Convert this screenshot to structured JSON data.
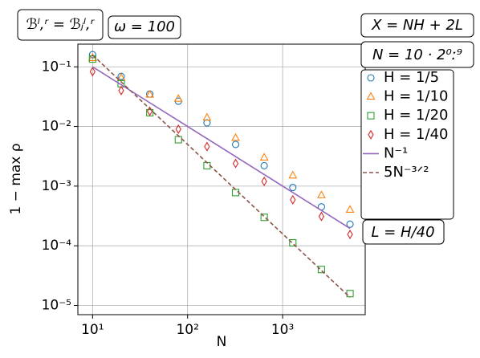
{
  "chart_data": {
    "type": "scatter",
    "xlabel": "N",
    "ylabel": "1 − max ρ",
    "xscale": "log",
    "yscale": "log",
    "grid": true,
    "legend": "right",
    "xlim": [
      7,
      7400
    ],
    "ylim": [
      7e-06,
      0.24
    ],
    "xticks": [
      {
        "value": 10,
        "label": "10¹"
      },
      {
        "value": 100,
        "label": "10²"
      },
      {
        "value": 1000,
        "label": "10³"
      }
    ],
    "yticks": [
      {
        "value": 1e-05,
        "label": "10⁻⁵"
      },
      {
        "value": 0.0001,
        "label": "10⁻⁴"
      },
      {
        "value": 0.001,
        "label": "10⁻³"
      },
      {
        "value": 0.01,
        "label": "10⁻²"
      },
      {
        "value": 0.1,
        "label": "10⁻¹"
      }
    ],
    "annotations": [
      "ℬˡ,ʳ = ℬⱼˡ,ʳ",
      "ω = 100",
      "X = NH + 2L",
      "N = 10 · 2⁰ː⁹",
      "L = H/40"
    ],
    "x": [
      10,
      20,
      40,
      80,
      160,
      320,
      640,
      1280,
      2560,
      5120
    ],
    "series": [
      {
        "name": "H = 1/5",
        "color": "#1f77b4",
        "marker": "circle",
        "values": [
          0.16,
          0.069,
          0.035,
          0.0265,
          0.0115,
          0.005,
          0.0022,
          0.00095,
          0.00045,
          0.00023
        ]
      },
      {
        "name": "H = 1/10",
        "color": "#ff7f0e",
        "marker": "triangle",
        "values": [
          0.14,
          0.065,
          0.034,
          0.029,
          0.014,
          0.0064,
          0.003,
          0.0015,
          0.0007,
          0.0004
        ]
      },
      {
        "name": "H = 1/20",
        "color": "#2ca02c",
        "marker": "square",
        "values": [
          0.135,
          0.052,
          0.017,
          0.006,
          0.0022,
          0.00078,
          0.0003,
          0.000112,
          4e-05,
          1.58e-05
        ]
      },
      {
        "name": "H = 1/40",
        "color": "#d62728",
        "marker": "diamond",
        "values": [
          0.083,
          0.04,
          0.018,
          0.009,
          0.0046,
          0.0024,
          0.0012,
          0.00059,
          0.00031,
          0.000155
        ]
      },
      {
        "name": "N⁻¹",
        "color": "#9467bd",
        "linestyle": "solid",
        "values": [
          0.1,
          0.05,
          0.025,
          0.0125,
          0.00625,
          0.003125,
          0.0015625,
          0.00078125,
          0.000390625,
          0.0001953125
        ]
      },
      {
        "name": "5N⁻³ᐟ²",
        "color": "#8c564b",
        "linestyle": "dashed",
        "values": [
          0.1581,
          0.0559,
          0.01976,
          0.006988,
          0.00247,
          0.0008735,
          0.0003088,
          0.0001092,
          3.86e-05,
          1.365e-05
        ]
      }
    ]
  }
}
